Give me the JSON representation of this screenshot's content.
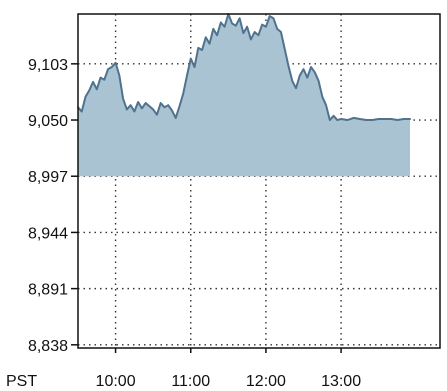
{
  "chart_data": {
    "type": "area",
    "title": "",
    "xlabel": "",
    "ylabel": "",
    "timezone_label": "PST",
    "x_ticks": [
      "10:00",
      "11:00",
      "12:00",
      "13:00"
    ],
    "y_ticks": [
      "9,103",
      "9,050",
      "8,997",
      "8,944",
      "8,891",
      "8,838"
    ],
    "ylim": [
      8835,
      9150
    ],
    "x_range": [
      "9:30",
      "13:55"
    ],
    "grid": true,
    "baseline": 8997,
    "colors": {
      "line": "#4f738f",
      "fill": "#a9c3d2",
      "grid": "#333333",
      "axis": "#111111"
    },
    "points": [
      [
        "09:30",
        9062
      ],
      [
        "09:33",
        9058
      ],
      [
        "09:36",
        9072
      ],
      [
        "09:39",
        9078
      ],
      [
        "09:42",
        9086
      ],
      [
        "09:45",
        9079
      ],
      [
        "09:48",
        9090
      ],
      [
        "09:51",
        9088
      ],
      [
        "09:54",
        9098
      ],
      [
        "09:57",
        9100
      ],
      [
        "10:00",
        9104
      ],
      [
        "10:03",
        9092
      ],
      [
        "10:06",
        9070
      ],
      [
        "10:09",
        9060
      ],
      [
        "10:12",
        9064
      ],
      [
        "10:15",
        9058
      ],
      [
        "10:18",
        9067
      ],
      [
        "10:21",
        9061
      ],
      [
        "10:24",
        9066
      ],
      [
        "10:27",
        9063
      ],
      [
        "10:30",
        9060
      ],
      [
        "10:33",
        9055
      ],
      [
        "10:36",
        9066
      ],
      [
        "10:39",
        9062
      ],
      [
        "10:42",
        9064
      ],
      [
        "10:45",
        9059
      ],
      [
        "10:48",
        9052
      ],
      [
        "10:51",
        9063
      ],
      [
        "10:54",
        9075
      ],
      [
        "10:57",
        9092
      ],
      [
        "11:00",
        9108
      ],
      [
        "11:03",
        9100
      ],
      [
        "11:06",
        9118
      ],
      [
        "11:09",
        9116
      ],
      [
        "11:12",
        9128
      ],
      [
        "11:15",
        9122
      ],
      [
        "11:18",
        9136
      ],
      [
        "11:21",
        9130
      ],
      [
        "11:24",
        9142
      ],
      [
        "11:27",
        9138
      ],
      [
        "11:30",
        9150
      ],
      [
        "11:33",
        9141
      ],
      [
        "11:36",
        9139
      ],
      [
        "11:39",
        9146
      ],
      [
        "11:42",
        9132
      ],
      [
        "11:45",
        9138
      ],
      [
        "11:48",
        9126
      ],
      [
        "11:51",
        9133
      ],
      [
        "11:54",
        9130
      ],
      [
        "11:57",
        9140
      ],
      [
        "12:00",
        9138
      ],
      [
        "12:03",
        9148
      ],
      [
        "12:06",
        9146
      ],
      [
        "12:09",
        9136
      ],
      [
        "12:12",
        9133
      ],
      [
        "12:15",
        9117
      ],
      [
        "12:18",
        9101
      ],
      [
        "12:21",
        9087
      ],
      [
        "12:24",
        9080
      ],
      [
        "12:27",
        9092
      ],
      [
        "12:30",
        9098
      ],
      [
        "12:33",
        9090
      ],
      [
        "12:36",
        9100
      ],
      [
        "12:39",
        9095
      ],
      [
        "12:42",
        9087
      ],
      [
        "12:45",
        9072
      ],
      [
        "12:48",
        9064
      ],
      [
        "12:51",
        9050
      ],
      [
        "12:54",
        9054
      ],
      [
        "12:57",
        9050
      ],
      [
        "13:00",
        9051
      ],
      [
        "13:05",
        9050
      ],
      [
        "13:10",
        9052
      ],
      [
        "13:15",
        9051
      ],
      [
        "13:20",
        9050
      ],
      [
        "13:25",
        9050
      ],
      [
        "13:30",
        9051
      ],
      [
        "13:35",
        9051
      ],
      [
        "13:40",
        9051
      ],
      [
        "13:45",
        9050
      ],
      [
        "13:50",
        9051
      ],
      [
        "13:55",
        9051
      ]
    ]
  }
}
